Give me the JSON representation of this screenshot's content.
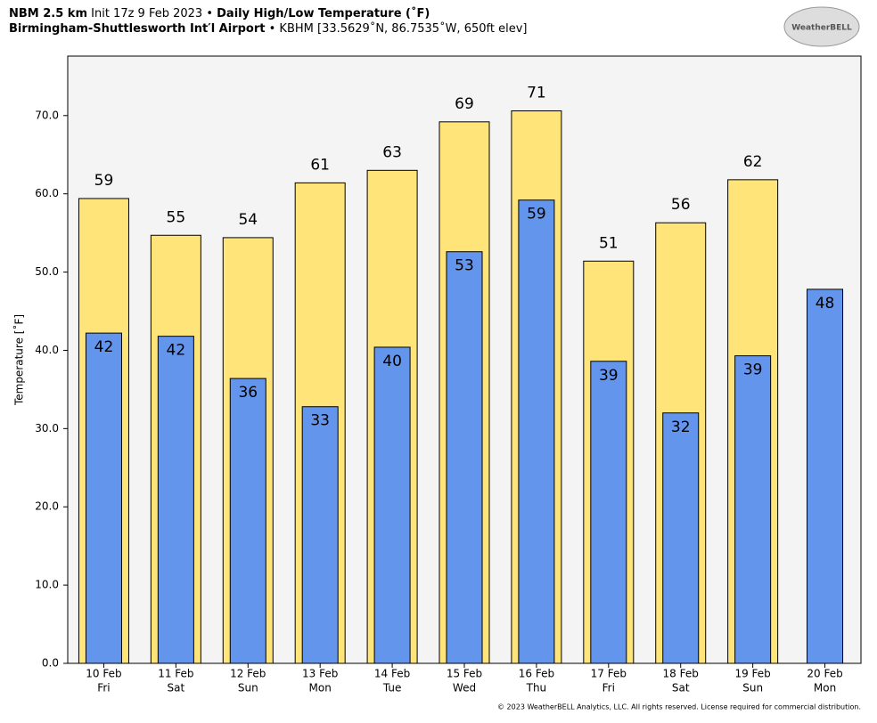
{
  "chart_data": {
    "type": "bar",
    "title": [
      "NBM 2.5 km",
      "Init 17z 9 Feb 2023 •",
      "Daily High/Low Temperature (˚F)"
    ],
    "subtitle": [
      "Birmingham-Shuttlesworth Int′l Airport",
      "• KBHM [33.5629˚N, 86.7535˚W, 650ft elev]"
    ],
    "logo": "WeatherBELL",
    "footer": "© 2023 WeatherBELL Analytics, LLC. All rights reserved. License required for commercial distribution.",
    "ylabel": "Temperature [˚F]",
    "categories": [
      "10 Feb",
      "11 Feb",
      "12 Feb",
      "13 Feb",
      "14 Feb",
      "15 Feb",
      "16 Feb",
      "17 Feb",
      "18 Feb",
      "19 Feb",
      "20 Feb"
    ],
    "weekdays": [
      "Fri",
      "Sat",
      "Sun",
      "Mon",
      "Tue",
      "Wed",
      "Thu",
      "Fri",
      "Sat",
      "Sun",
      "Mon"
    ],
    "series": [
      {
        "name": "High",
        "color": "#ffe47a",
        "values": [
          59.4,
          54.7,
          54.4,
          61.4,
          63.0,
          69.2,
          70.6,
          51.4,
          56.3,
          61.8,
          null
        ],
        "value_labels": [
          "59",
          "55",
          "54",
          "61",
          "63",
          "69",
          "71",
          "51",
          "56",
          "62",
          null
        ]
      },
      {
        "name": "Low",
        "color": "#6495ed",
        "values": [
          42.2,
          41.8,
          36.4,
          32.8,
          40.4,
          52.6,
          59.2,
          38.6,
          32.0,
          39.3,
          47.8
        ],
        "value_labels": [
          "42",
          "42",
          "36",
          "33",
          "40",
          "53",
          "59",
          "39",
          "32",
          "39",
          "48"
        ]
      }
    ],
    "ylim": [
      0,
      77.6
    ],
    "yticks": [
      {
        "value": 0,
        "label": "0.0"
      },
      {
        "value": 10,
        "label": "10.0"
      },
      {
        "value": 20,
        "label": "20.0"
      },
      {
        "value": 30,
        "label": "30.0"
      },
      {
        "value": 40,
        "label": "40.0"
      },
      {
        "value": 50,
        "label": "50.0"
      },
      {
        "value": 60,
        "label": "60.0"
      },
      {
        "value": 70,
        "label": "70.0"
      }
    ]
  }
}
